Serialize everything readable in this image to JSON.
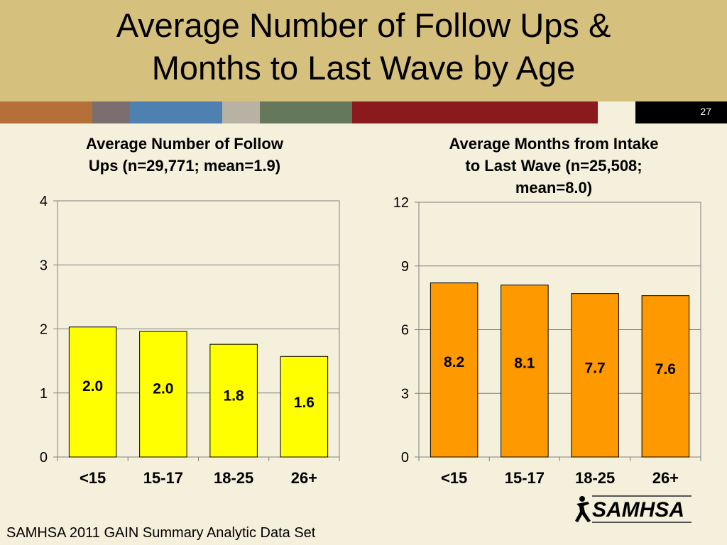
{
  "slide": {
    "title_line1": "Average Number of Follow Ups &",
    "title_line2": "Months to Last Wave by Age",
    "number": "27",
    "footer": "SAMHSA 2011 GAIN Summary Analytic Data Set",
    "logo_text": "SAMHSA",
    "colors": {
      "header": "#d6c07e",
      "background": "#f5f0dc",
      "stripe": [
        "#b5703a",
        "#7a6e6e",
        "#4f81b0",
        "#b9b2a4",
        "#66785c",
        "#8b1a1e",
        "#f5f0dc",
        "#000000"
      ]
    }
  },
  "chart_data": [
    {
      "type": "bar",
      "title_line1": "Average Number of Follow",
      "title_line2": "Ups (n=29,771; mean=1.9)",
      "categories": [
        "<15",
        "15-17",
        "18-25",
        "26+"
      ],
      "values": [
        2.03,
        1.96,
        1.76,
        1.57
      ],
      "data_labels": [
        "2.0",
        "2.0",
        "1.8",
        "1.6"
      ],
      "ylim": [
        0,
        4
      ],
      "yticks": [
        0,
        1,
        2,
        3,
        4
      ],
      "bar_color": "#ffff00",
      "grid": true,
      "legend": "none"
    },
    {
      "type": "bar",
      "title_line1": "Average Months from Intake",
      "title_line2": "to Last Wave (n=25,508;",
      "title_line3": "mean=8.0)",
      "categories": [
        "<15",
        "15-17",
        "18-25",
        "26+"
      ],
      "values": [
        8.2,
        8.1,
        7.7,
        7.6
      ],
      "data_labels": [
        "8.2",
        "8.1",
        "7.7",
        "7.6"
      ],
      "ylim": [
        0,
        12
      ],
      "yticks": [
        0,
        3,
        6,
        9,
        12
      ],
      "bar_color": "#ff9900",
      "grid": true,
      "legend": "none"
    }
  ]
}
